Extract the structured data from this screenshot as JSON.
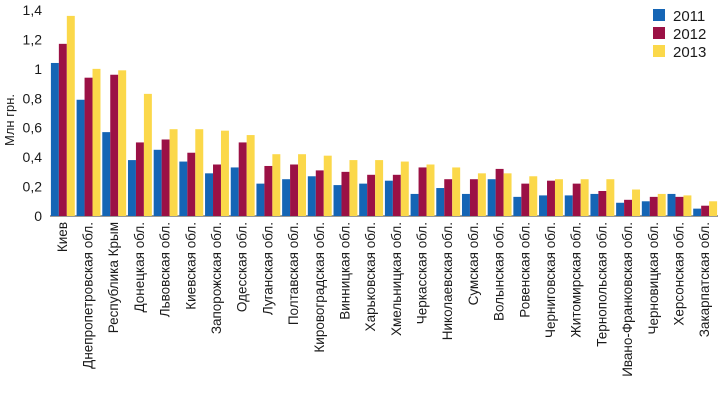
{
  "chart_data": {
    "type": "bar",
    "ylabel": "Млн грн.",
    "ylim": [
      0,
      1.4
    ],
    "yticks": [
      "0",
      "0,2",
      "0,4",
      "0,6",
      "0,8",
      "1",
      "1,2",
      "1,4"
    ],
    "grid": false,
    "legend_position": "top-right",
    "categories": [
      "Киев",
      "Днепропетровская обл.",
      "Республика Крым",
      "Донецкая обл.",
      "Львовская обл.",
      "Киевская обл.",
      "Запорожская обл.",
      "Одесская обл.",
      "Луганская обл.",
      "Полтавская обл.",
      "Кировоградская обл.",
      "Винницкая обл.",
      "Харьковская обл.",
      "Хмельницкая обл.",
      "Черкасская обл.",
      "Николаевская обл.",
      "Сумская обл.",
      "Волынская обл.",
      "Ровенская обл.",
      "Черниговская обл.",
      "Житомирская обл.",
      "Тернопольская обл.",
      "Ивано-Франковская обл.",
      "Черновицкая обл.",
      "Херсонская обл.",
      "Закарпатская обл."
    ],
    "series": [
      {
        "name": "2011",
        "color": "#1565b5",
        "values": [
          1.04,
          0.79,
          0.57,
          0.38,
          0.45,
          0.37,
          0.29,
          0.33,
          0.22,
          0.25,
          0.27,
          0.21,
          0.22,
          0.24,
          0.15,
          0.19,
          0.15,
          0.25,
          0.13,
          0.14,
          0.14,
          0.15,
          0.09,
          0.1,
          0.15,
          0.05
        ]
      },
      {
        "name": "2012",
        "color": "#9b1145",
        "values": [
          1.17,
          0.94,
          0.96,
          0.5,
          0.52,
          0.43,
          0.35,
          0.5,
          0.34,
          0.35,
          0.31,
          0.3,
          0.28,
          0.28,
          0.33,
          0.25,
          0.25,
          0.32,
          0.22,
          0.24,
          0.22,
          0.17,
          0.11,
          0.13,
          0.13,
          0.07
        ]
      },
      {
        "name": "2013",
        "color": "#fbd84a",
        "values": [
          1.36,
          1.0,
          0.99,
          0.83,
          0.59,
          0.59,
          0.58,
          0.55,
          0.42,
          0.42,
          0.41,
          0.38,
          0.38,
          0.37,
          0.35,
          0.33,
          0.29,
          0.29,
          0.27,
          0.25,
          0.25,
          0.25,
          0.18,
          0.15,
          0.14,
          0.1
        ]
      }
    ]
  }
}
